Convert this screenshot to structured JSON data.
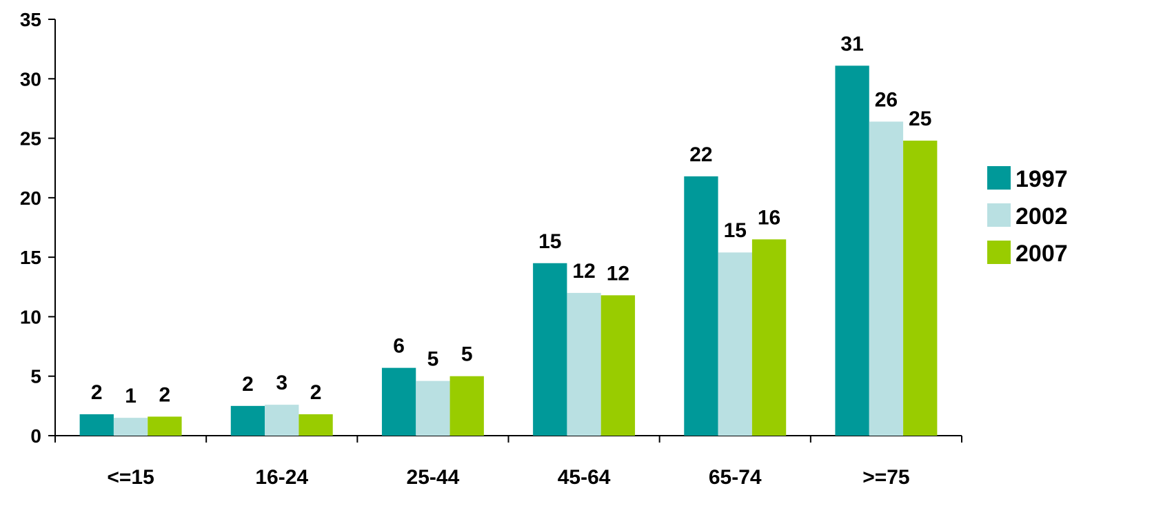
{
  "chart_data": {
    "type": "bar",
    "title": "",
    "xlabel": "",
    "ylabel": "",
    "ylim": [
      0,
      35
    ],
    "y_ticks": [
      "0",
      "5",
      "10",
      "15",
      "20",
      "25",
      "30",
      "35"
    ],
    "categories": [
      "<=15",
      "16-24",
      "25-44",
      "45-64",
      "65-74",
      ">=75"
    ],
    "series": [
      {
        "name": "1997",
        "color": "#009999",
        "values": [
          1.8,
          2.5,
          5.7,
          14.5,
          21.8,
          31.1
        ],
        "labels": [
          "2",
          "2",
          "6",
          "15",
          "22",
          "31"
        ]
      },
      {
        "name": "2002",
        "color": "#b9e0e2",
        "values": [
          1.5,
          2.6,
          4.6,
          12.0,
          15.4,
          26.4
        ],
        "labels": [
          "1",
          "3",
          "5",
          "12",
          "15",
          "26"
        ]
      },
      {
        "name": "2007",
        "color": "#99cc00",
        "values": [
          1.6,
          1.8,
          5.0,
          11.8,
          16.5,
          24.8
        ],
        "labels": [
          "2",
          "2",
          "5",
          "12",
          "16",
          "25"
        ]
      }
    ],
    "grid": false,
    "legend_position": "right"
  }
}
